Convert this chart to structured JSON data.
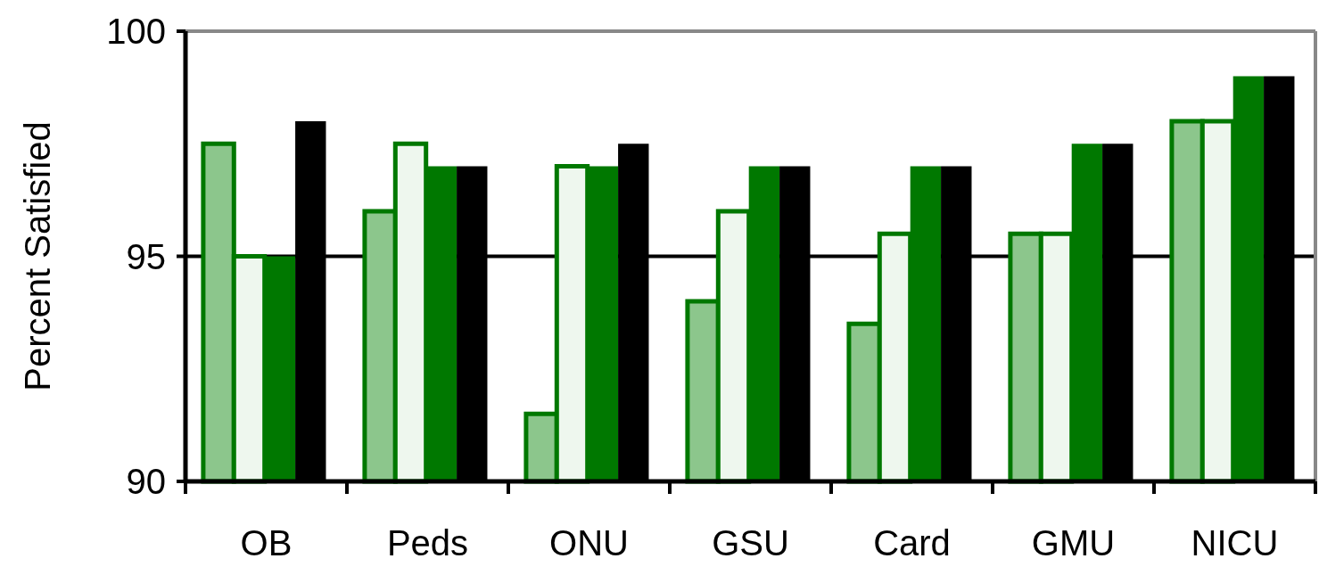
{
  "chart_data": {
    "type": "bar",
    "ylabel": "Percent Satisfied",
    "categories": [
      "OB",
      "Peds",
      "ONU",
      "GSU",
      "Card",
      "GMU",
      "NICU"
    ],
    "series": [
      {
        "color": "#8cc68c",
        "values": [
          97.5,
          96,
          91.5,
          94,
          93.5,
          95.5,
          98
        ]
      },
      {
        "color": "#eef7ee",
        "values": [
          95,
          97.5,
          97,
          96,
          95.5,
          95.5,
          98
        ]
      },
      {
        "color": "#007800",
        "values": [
          95,
          97,
          97,
          97,
          97,
          97.5,
          99
        ]
      },
      {
        "color": "#000000",
        "values": [
          98,
          97,
          97.5,
          97,
          97,
          97.5,
          99
        ]
      }
    ],
    "ylim": [
      90,
      100
    ],
    "yticks": [
      90,
      95,
      100
    ],
    "grid": "y"
  }
}
